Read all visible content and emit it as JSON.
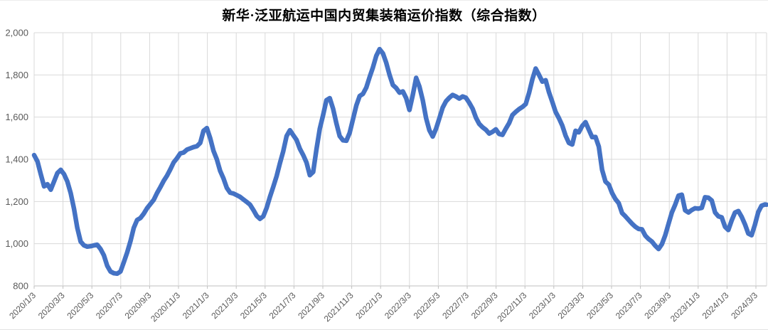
{
  "chart": {
    "colors": {
      "line": "#4472C4",
      "gridline": "#D9D9D9",
      "axis_line": "#BFBFBF",
      "tick_label": "#595959",
      "title": "#000000",
      "background": "#FFFFFF"
    }
  },
  "chart_data": {
    "type": "line",
    "title": "新华·泛亚航运中国内贸集装箱运价指数（综合指数）",
    "xlabel": "",
    "ylabel": "",
    "ylim": [
      800,
      2000
    ],
    "grid": true,
    "legend": "none",
    "y_ticks": [
      800,
      1000,
      1200,
      1400,
      1600,
      1800,
      2000
    ],
    "y_tick_labels": [
      "800",
      "1,000",
      "1,200",
      "1,400",
      "1,600",
      "1,800",
      "2,000"
    ],
    "x_tick_labels": [
      "2020/1/3",
      "2020/3/3",
      "2020/5/3",
      "2020/7/3",
      "2020/9/3",
      "2020/11/3",
      "2021/1/3",
      "2021/3/3",
      "2021/5/3",
      "2021/7/3",
      "2021/9/3",
      "2021/11/3",
      "2022/1/3",
      "2022/3/3",
      "2022/5/3",
      "2022/7/3",
      "2022/9/3",
      "2022/11/3",
      "2023/1/3",
      "2023/3/3",
      "2023/5/3",
      "2023/7/3",
      "2023/9/3",
      "2023/11/3",
      "2024/1/3",
      "2024/3/3"
    ],
    "series": [
      {
        "name": "综合指数",
        "freq": "weekly",
        "start_date": "2020/1/3",
        "end_date": "2024/3/29",
        "values": [
          1420,
          1390,
          1330,
          1272,
          1282,
          1256,
          1295,
          1335,
          1350,
          1330,
          1295,
          1240,
          1165,
          1075,
          1010,
          992,
          986,
          988,
          992,
          995,
          975,
          945,
          895,
          868,
          860,
          858,
          868,
          912,
          958,
          1012,
          1075,
          1112,
          1122,
          1142,
          1168,
          1188,
          1208,
          1240,
          1268,
          1298,
          1322,
          1352,
          1385,
          1405,
          1428,
          1432,
          1446,
          1452,
          1458,
          1462,
          1478,
          1535,
          1548,
          1500,
          1440,
          1400,
          1345,
          1310,
          1265,
          1242,
          1238,
          1230,
          1222,
          1210,
          1198,
          1185,
          1160,
          1132,
          1118,
          1130,
          1170,
          1222,
          1270,
          1320,
          1382,
          1438,
          1510,
          1538,
          1515,
          1492,
          1450,
          1420,
          1385,
          1325,
          1340,
          1447,
          1545,
          1610,
          1680,
          1690,
          1640,
          1570,
          1510,
          1490,
          1488,
          1525,
          1590,
          1655,
          1700,
          1710,
          1740,
          1790,
          1835,
          1890,
          1922,
          1902,
          1858,
          1800,
          1752,
          1738,
          1716,
          1722,
          1690,
          1634,
          1705,
          1786,
          1745,
          1680,
          1595,
          1538,
          1508,
          1545,
          1595,
          1645,
          1675,
          1692,
          1705,
          1698,
          1688,
          1698,
          1692,
          1668,
          1640,
          1598,
          1568,
          1552,
          1540,
          1522,
          1530,
          1542,
          1520,
          1516,
          1545,
          1572,
          1610,
          1625,
          1638,
          1648,
          1662,
          1715,
          1780,
          1830,
          1800,
          1768,
          1775,
          1718,
          1672,
          1625,
          1595,
          1560,
          1512,
          1478,
          1470,
          1535,
          1528,
          1558,
          1576,
          1540,
          1505,
          1506,
          1460,
          1350,
          1295,
          1280,
          1240,
          1212,
          1192,
          1145,
          1130,
          1112,
          1095,
          1080,
          1070,
          1068,
          1038,
          1022,
          1010,
          990,
          975,
          998,
          1040,
          1095,
          1148,
          1185,
          1228,
          1232,
          1158,
          1148,
          1160,
          1168,
          1166,
          1170,
          1220,
          1218,
          1205,
          1148,
          1130,
          1125,
          1080,
          1065,
          1110,
          1148,
          1155,
          1128,
          1092,
          1048,
          1040,
          1090,
          1150,
          1180,
          1186,
          1185
        ]
      }
    ]
  }
}
